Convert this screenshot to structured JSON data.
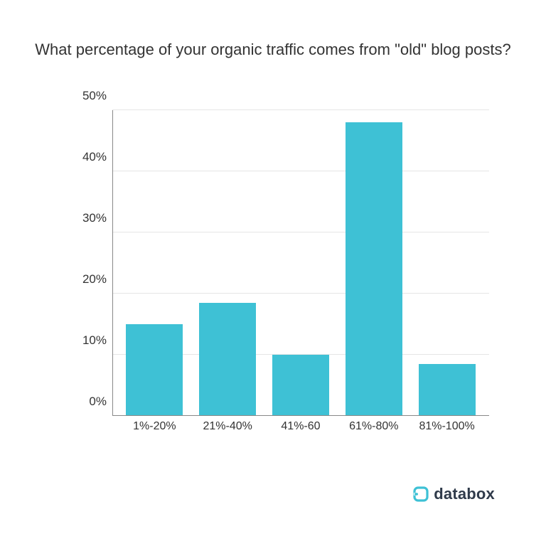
{
  "title": "What percentage of your organic traffic comes from \"old\" blog posts?",
  "chart": {
    "type": "bar",
    "categories": [
      "1%-20%",
      "21%-40%",
      "41%-60",
      "61%-80%",
      "81%-100%"
    ],
    "values": [
      15,
      18.5,
      10,
      48,
      8.5
    ],
    "bar_color": "#3ec1d5",
    "ylim": [
      0,
      50
    ],
    "ytick_step": 10,
    "yticks": [
      "0%",
      "10%",
      "20%",
      "30%",
      "40%",
      "50%"
    ],
    "background_color": "#ffffff",
    "grid_color": "#e5e5e5",
    "axis_color": "#888888",
    "title_fontsize": 22,
    "label_fontsize": 17,
    "xlabel_fontsize": 16,
    "bar_width": 0.78
  },
  "brand": {
    "name": "databox",
    "color": "#3ec1d5",
    "text_color": "#2f3a4a"
  }
}
